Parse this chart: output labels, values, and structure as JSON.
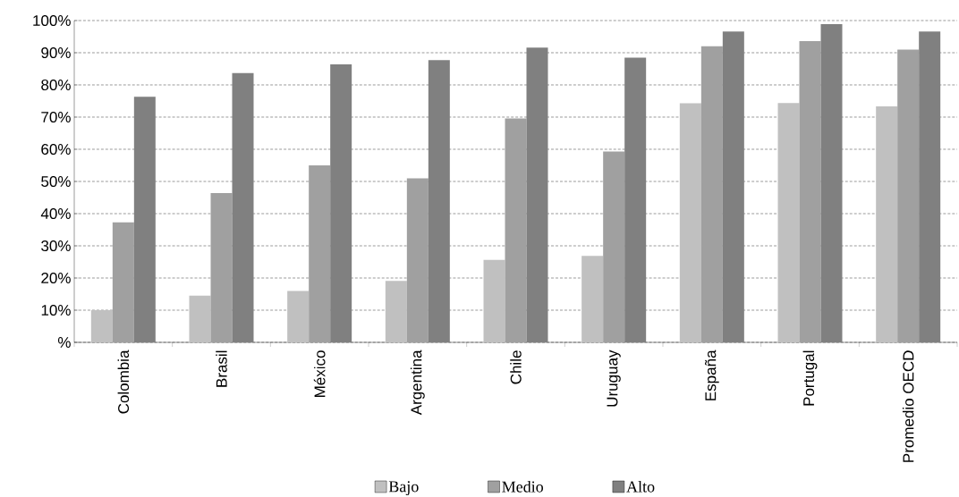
{
  "chart_data": {
    "type": "bar",
    "categories": [
      "Colombia",
      "Brasil",
      "México",
      "Argentina",
      "Chile",
      "Uruguay",
      "España",
      "Portugal",
      "Promedio OECD"
    ],
    "series": [
      {
        "name": "Bajo",
        "color": "#c0c0c0",
        "values": [
          10.0,
          14.5,
          16.0,
          19.1,
          25.6,
          26.9,
          74.3,
          74.4,
          73.3
        ]
      },
      {
        "name": "Medio",
        "color": "#a0a0a0",
        "values": [
          37.3,
          46.4,
          55.0,
          51.0,
          69.6,
          59.3,
          92.0,
          93.6,
          91.0
        ]
      },
      {
        "name": "Alto",
        "color": "#808080",
        "values": [
          76.3,
          83.7,
          86.4,
          87.7,
          91.6,
          88.5,
          96.6,
          98.9,
          96.6
        ]
      }
    ],
    "ylim": [
      0,
      100
    ],
    "yticks": [
      {
        "value": 0,
        "label": "%"
      },
      {
        "value": 10,
        "label": "10%"
      },
      {
        "value": 20,
        "label": "20%"
      },
      {
        "value": 30,
        "label": "30%"
      },
      {
        "value": 40,
        "label": "40%"
      },
      {
        "value": 50,
        "label": "50%"
      },
      {
        "value": 60,
        "label": "60%"
      },
      {
        "value": 70,
        "label": "70%"
      },
      {
        "value": 80,
        "label": "80%"
      },
      {
        "value": 90,
        "label": "90%"
      },
      {
        "value": 100,
        "label": "100%"
      }
    ],
    "grid": "y",
    "legend": "bottom"
  }
}
